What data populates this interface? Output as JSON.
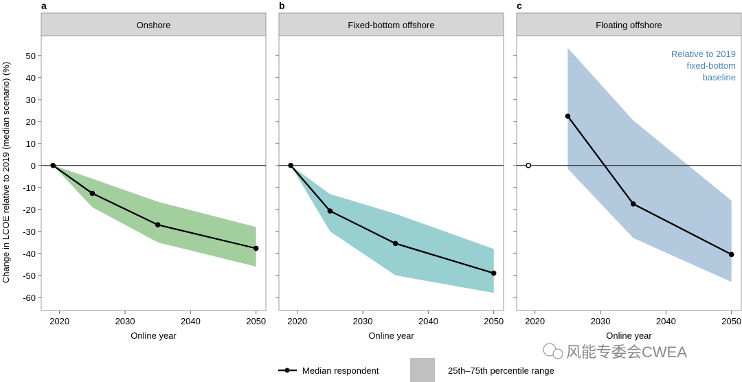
{
  "ylabel": "Change in LCOE relative to 2019 (median scenario) (%)",
  "legend": {
    "median_label": "Median respondent",
    "range_label": "25th–75th percentile range",
    "range_color": "#c0c0c0"
  },
  "watermark": "风能专委会CWEA",
  "chart_data": [
    {
      "type": "line",
      "panel_letter": "a",
      "title": "Onshore",
      "xlabel": "Online year",
      "xlim": [
        2017.2,
        2051.5
      ],
      "ylim": [
        -66,
        59
      ],
      "xticks": [
        2020,
        2030,
        2040,
        2050
      ],
      "yticks": [
        50,
        40,
        30,
        20,
        10,
        0,
        -10,
        -20,
        -30,
        -40,
        -50,
        -60
      ],
      "band_color": "#a3cf9f",
      "median": {
        "x": [
          2019,
          2025,
          2035,
          2050
        ],
        "y": [
          0,
          -12.7,
          -27,
          -37.7
        ],
        "open_first": false
      },
      "band": {
        "x": [
          2019,
          2025,
          2035,
          2050
        ],
        "upper": [
          0,
          -6,
          -16.5,
          -28
        ],
        "lower": [
          0,
          -19,
          -35,
          -46
        ]
      }
    },
    {
      "type": "line",
      "panel_letter": "b",
      "title": "Fixed-bottom offshore",
      "xlabel": "Online year",
      "xlim": [
        2017.2,
        2051.5
      ],
      "ylim": [
        -66,
        59
      ],
      "xticks": [
        2020,
        2030,
        2040,
        2050
      ],
      "yticks": [
        50,
        40,
        30,
        20,
        10,
        0,
        -10,
        -20,
        -30,
        -40,
        -50,
        -60
      ],
      "band_color": "#98cfd0",
      "median": {
        "x": [
          2019,
          2025,
          2035,
          2050
        ],
        "y": [
          0,
          -20.7,
          -35.5,
          -49
        ],
        "open_first": false
      },
      "band": {
        "x": [
          2019,
          2025,
          2035,
          2050
        ],
        "upper": [
          0,
          -13,
          -22,
          -38
        ],
        "lower": [
          0,
          -30,
          -50,
          -58
        ]
      }
    },
    {
      "type": "line",
      "panel_letter": "c",
      "title": "Floating offshore",
      "xlabel": "Online year",
      "xlim": [
        2017.2,
        2051.5
      ],
      "ylim": [
        -66,
        59
      ],
      "xticks": [
        2020,
        2030,
        2040,
        2050
      ],
      "yticks": [
        50,
        40,
        30,
        20,
        10,
        0,
        -10,
        -20,
        -30,
        -40,
        -50,
        -60
      ],
      "band_color": "#b3c9de",
      "annotation": [
        "Relative to 2019",
        "fixed-bottom",
        "baseline"
      ],
      "annotation_color": "#4a86c0",
      "baseline_point": {
        "x": 2019,
        "y": 0
      },
      "median": {
        "x": [
          2025,
          2035,
          2050
        ],
        "y": [
          22.4,
          -17.5,
          -40.5
        ],
        "open_first": false
      },
      "band": {
        "x": [
          2025,
          2035,
          2050
        ],
        "upper": [
          53.5,
          20.5,
          -16
        ],
        "lower": [
          -1.5,
          -33,
          -53
        ]
      }
    }
  ]
}
